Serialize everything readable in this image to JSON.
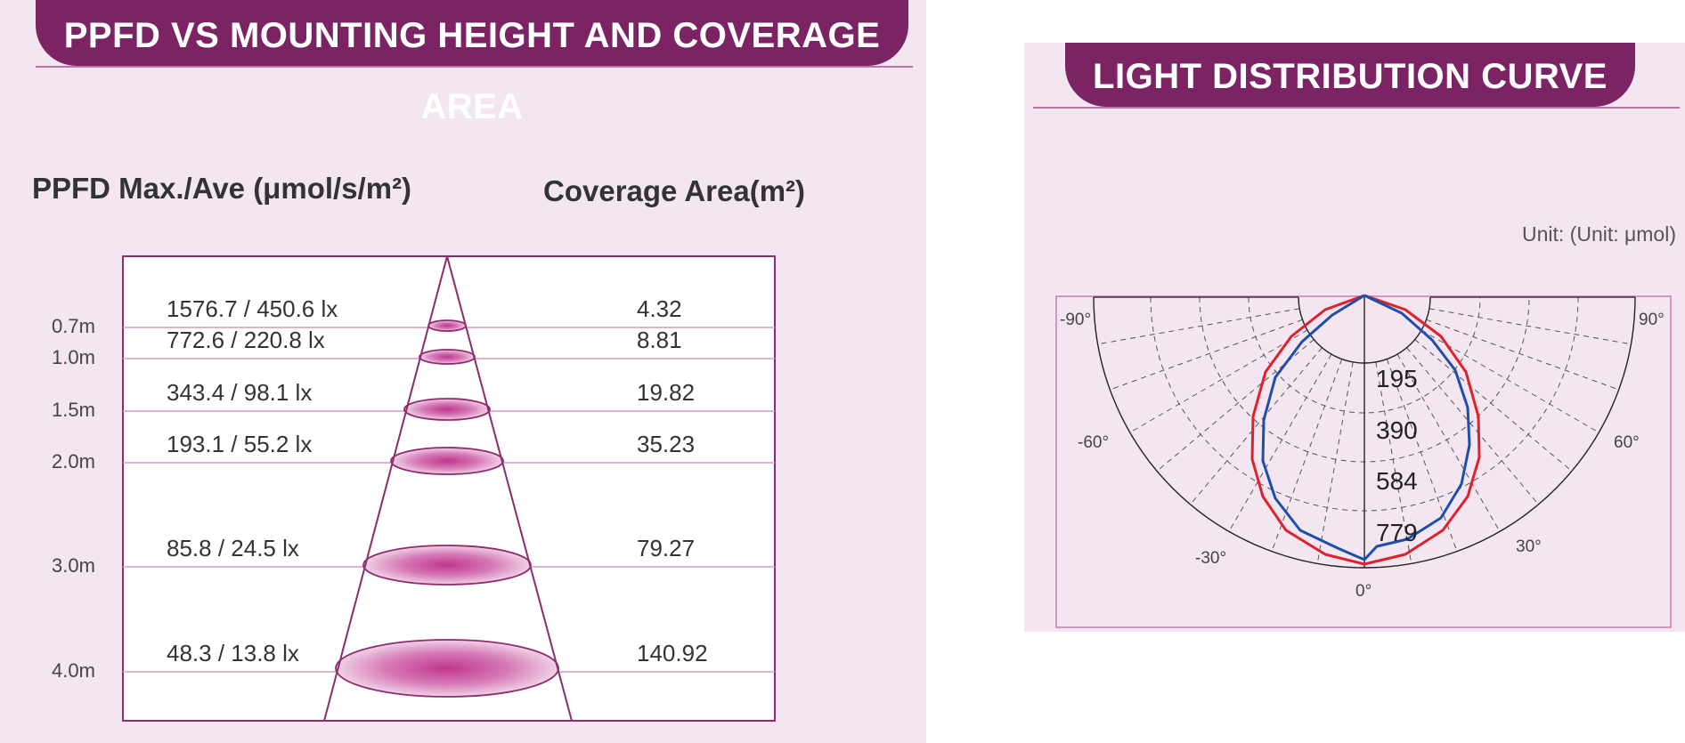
{
  "left": {
    "title": "PPFD VS MOUNTING HEIGHT AND COVERAGE AREA",
    "col_ppfd": "PPFD Max./Ave (μmol/s/m²)",
    "col_coverage": "Coverage Area(m²)",
    "rows": [
      {
        "height": "0.7m",
        "ppfd": "1576.7 /  450.6 lx",
        "area": "4.32"
      },
      {
        "height": "1.0m",
        "ppfd": "772.6 / 220.8 lx",
        "area": "8.81"
      },
      {
        "height": "1.5m",
        "ppfd": "343.4 / 98.1 lx",
        "area": "19.82"
      },
      {
        "height": "2.0m",
        "ppfd": "193.1 / 55.2 lx",
        "area": "35.23"
      },
      {
        "height": "3.0m",
        "ppfd": "85.8 / 24.5 lx",
        "area": "79.27"
      },
      {
        "height": "4.0m",
        "ppfd": "48.3 / 13.8 lx",
        "area": "140.92"
      }
    ]
  },
  "right": {
    "title": "LIGHT DISTRIBUTION CURVE",
    "unit": "Unit: (Unit: μmol)",
    "angle_labels": [
      "-90°",
      "90°",
      "-60°",
      "60°",
      "-30°",
      "30°",
      "0°"
    ],
    "ring_labels": [
      "195",
      "390",
      "584",
      "779"
    ]
  },
  "colors": {
    "accent": "#7c2364",
    "panel_bg": "#f3e6f1",
    "red_curve": "#e0202a",
    "blue_curve": "#1e4fa8"
  }
}
